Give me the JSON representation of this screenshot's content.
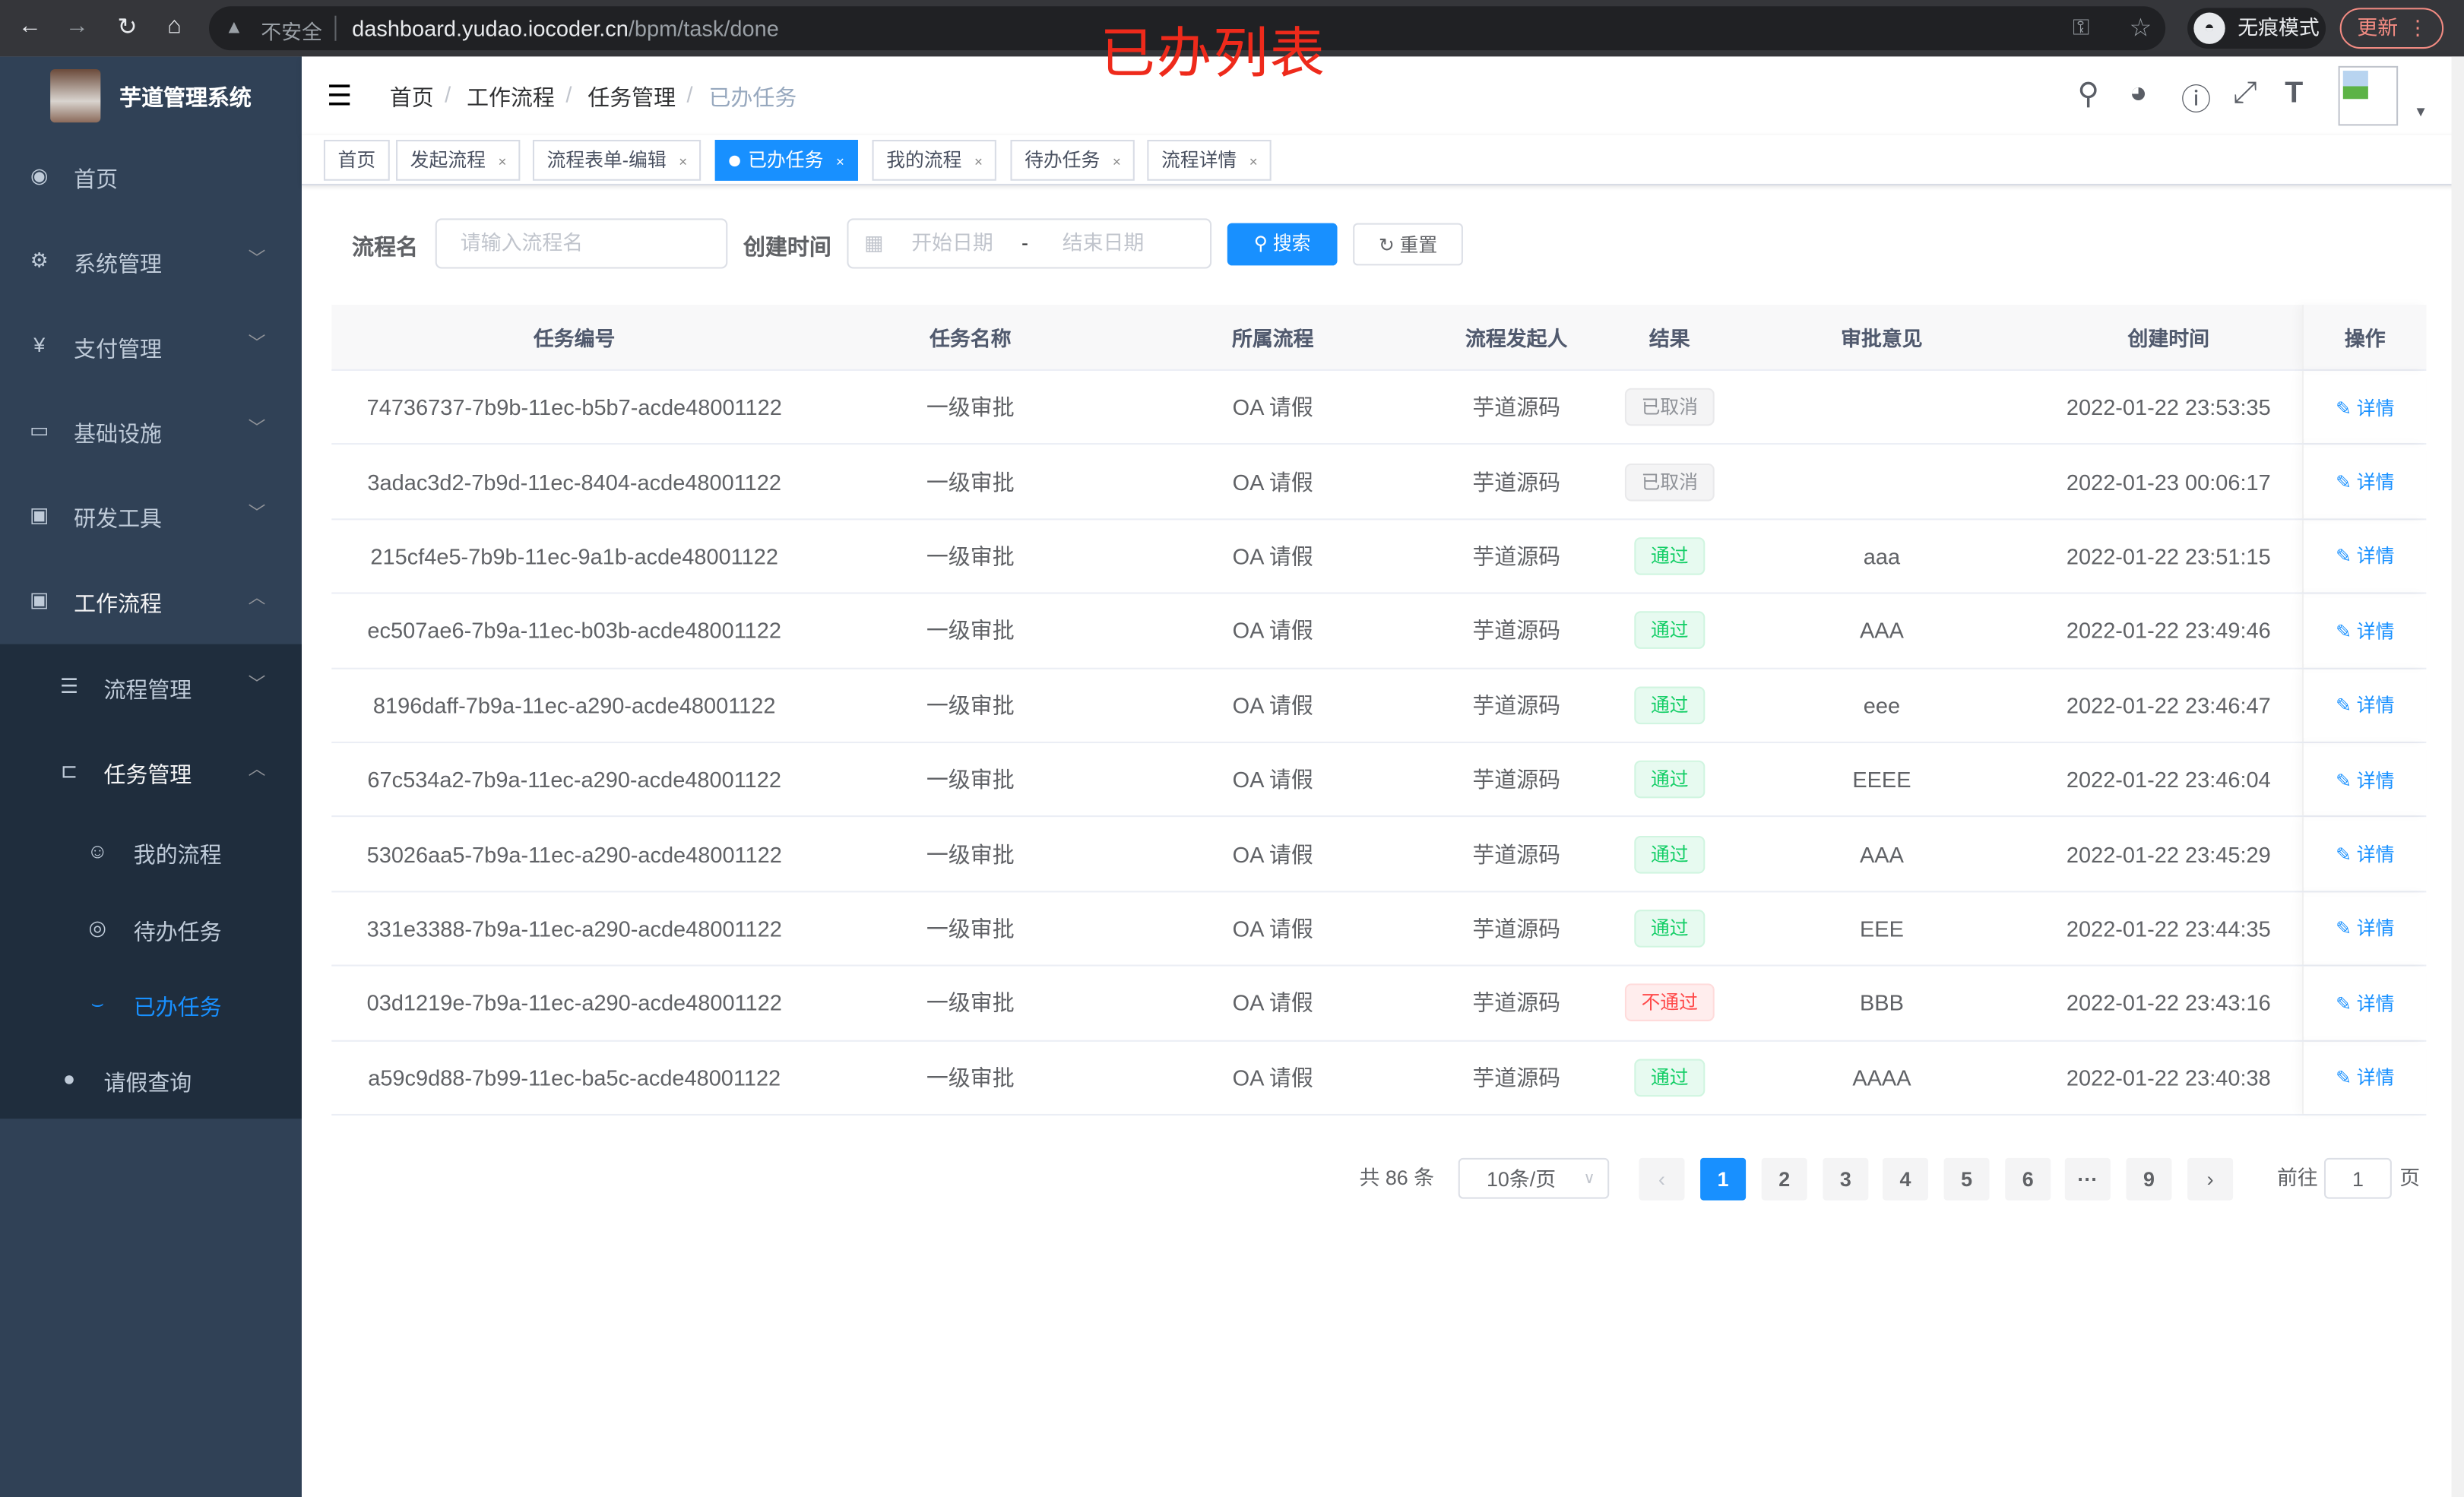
{
  "browser": {
    "insecure_label": "不安全",
    "url_host": "dashboard.yudao.iocoder.cn",
    "url_path": "/bpm/task/done",
    "incognito_label": "无痕模式",
    "update_label": "更新"
  },
  "annotation": "已办列表",
  "app": {
    "title": "芋道管理系统"
  },
  "sidebar": {
    "items": [
      {
        "label": "首页",
        "icon": "dashboard-icon"
      },
      {
        "label": "系统管理",
        "icon": "gear-icon"
      },
      {
        "label": "支付管理",
        "icon": "yen-icon"
      },
      {
        "label": "基础设施",
        "icon": "monitor-icon"
      },
      {
        "label": "研发工具",
        "icon": "toolbox-icon"
      },
      {
        "label": "工作流程",
        "icon": "toolbox-icon"
      }
    ],
    "sub_items": [
      {
        "label": "流程管理",
        "icon": "list-icon"
      },
      {
        "label": "任务管理",
        "icon": "tree-icon"
      },
      {
        "label": "我的流程",
        "icon": "robot-icon"
      },
      {
        "label": "待办任务",
        "icon": "eye-icon"
      },
      {
        "label": "已办任务",
        "icon": "eye-closed-icon",
        "active": true
      },
      {
        "label": "请假查询",
        "icon": "user-icon"
      }
    ]
  },
  "breadcrumb": [
    "首页",
    "工作流程",
    "任务管理",
    "已办任务"
  ],
  "tags": [
    {
      "label": "首页"
    },
    {
      "label": "发起流程"
    },
    {
      "label": "流程表单-编辑"
    },
    {
      "label": "已办任务",
      "active": true
    },
    {
      "label": "我的流程"
    },
    {
      "label": "待办任务"
    },
    {
      "label": "流程详情"
    }
  ],
  "search": {
    "name_label": "流程名",
    "name_placeholder": "请输入流程名",
    "time_label": "创建时间",
    "start_placeholder": "开始日期",
    "range_sep": "-",
    "end_placeholder": "结束日期",
    "search_button": "搜索",
    "reset_button": "重置"
  },
  "table": {
    "columns": [
      "任务编号",
      "任务名称",
      "所属流程",
      "流程发起人",
      "结果",
      "审批意见",
      "创建时间",
      "操作"
    ],
    "action_label": "详情",
    "rows": [
      {
        "id": "74736737-7b9b-11ec-b5b7-acde48001122",
        "name": "一级审批",
        "process": "OA 请假",
        "starter": "芋道源码",
        "result": "已取消",
        "result_type": "info",
        "comment": "",
        "created": "2022-01-22 23:53:35"
      },
      {
        "id": "3adac3d2-7b9d-11ec-8404-acde48001122",
        "name": "一级审批",
        "process": "OA 请假",
        "starter": "芋道源码",
        "result": "已取消",
        "result_type": "info",
        "comment": "",
        "created": "2022-01-23 00:06:17"
      },
      {
        "id": "215cf4e5-7b9b-11ec-9a1b-acde48001122",
        "name": "一级审批",
        "process": "OA 请假",
        "starter": "芋道源码",
        "result": "通过",
        "result_type": "success",
        "comment": "aaa",
        "created": "2022-01-22 23:51:15"
      },
      {
        "id": "ec507ae6-7b9a-11ec-b03b-acde48001122",
        "name": "一级审批",
        "process": "OA 请假",
        "starter": "芋道源码",
        "result": "通过",
        "result_type": "success",
        "comment": "AAA",
        "created": "2022-01-22 23:49:46"
      },
      {
        "id": "8196daff-7b9a-11ec-a290-acde48001122",
        "name": "一级审批",
        "process": "OA 请假",
        "starter": "芋道源码",
        "result": "通过",
        "result_type": "success",
        "comment": "eee",
        "created": "2022-01-22 23:46:47"
      },
      {
        "id": "67c534a2-7b9a-11ec-a290-acde48001122",
        "name": "一级审批",
        "process": "OA 请假",
        "starter": "芋道源码",
        "result": "通过",
        "result_type": "success",
        "comment": "EEEE",
        "created": "2022-01-22 23:46:04"
      },
      {
        "id": "53026aa5-7b9a-11ec-a290-acde48001122",
        "name": "一级审批",
        "process": "OA 请假",
        "starter": "芋道源码",
        "result": "通过",
        "result_type": "success",
        "comment": "AAA",
        "created": "2022-01-22 23:45:29"
      },
      {
        "id": "331e3388-7b9a-11ec-a290-acde48001122",
        "name": "一级审批",
        "process": "OA 请假",
        "starter": "芋道源码",
        "result": "通过",
        "result_type": "success",
        "comment": "EEE",
        "created": "2022-01-22 23:44:35"
      },
      {
        "id": "03d1219e-7b9a-11ec-a290-acde48001122",
        "name": "一级审批",
        "process": "OA 请假",
        "starter": "芋道源码",
        "result": "不通过",
        "result_type": "danger",
        "comment": "BBB",
        "created": "2022-01-22 23:43:16"
      },
      {
        "id": "a59c9d88-7b99-11ec-ba5c-acde48001122",
        "name": "一级审批",
        "process": "OA 请假",
        "starter": "芋道源码",
        "result": "通过",
        "result_type": "success",
        "comment": "AAAA",
        "created": "2022-01-22 23:40:38"
      }
    ]
  },
  "pagination": {
    "total_label": "共 86 条",
    "page_size": "10条/页",
    "pages": [
      "1",
      "2",
      "3",
      "4",
      "5",
      "6",
      "···",
      "9"
    ],
    "current": "1",
    "goto_label": "前往",
    "goto_value": "1",
    "page_suffix": "页"
  },
  "colors": {
    "primary": "#1890ff",
    "sidebar": "#304156",
    "submenu": "#1f2d3d",
    "annotation": "#ee2a1b"
  }
}
